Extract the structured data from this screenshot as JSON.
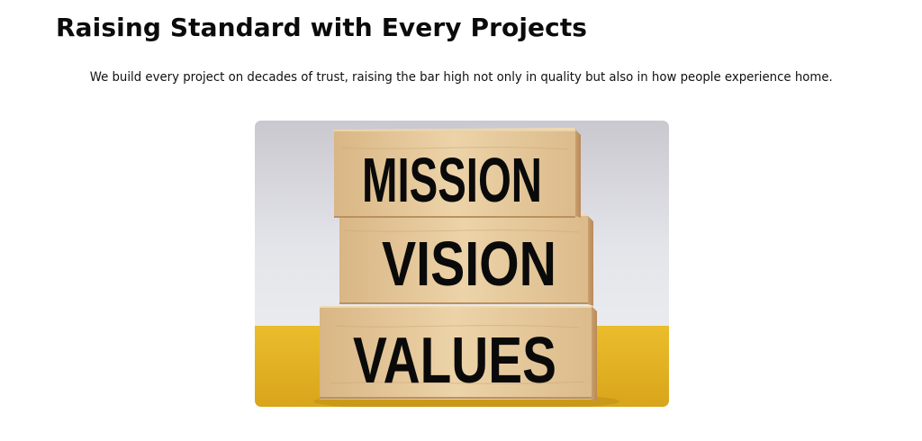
{
  "section": {
    "title": "Raising Standard with Every Projects",
    "description": "We build every project on decades of trust, raising the bar high not only in quality but also in how people experience home."
  },
  "image": {
    "blocks": [
      "MISSION",
      "VISION",
      "VALUES"
    ],
    "colors": {
      "backdrop": "#dcdde2",
      "table": "#e8b826",
      "wood": "#e6c89a",
      "text": "#0a0a0a"
    }
  }
}
